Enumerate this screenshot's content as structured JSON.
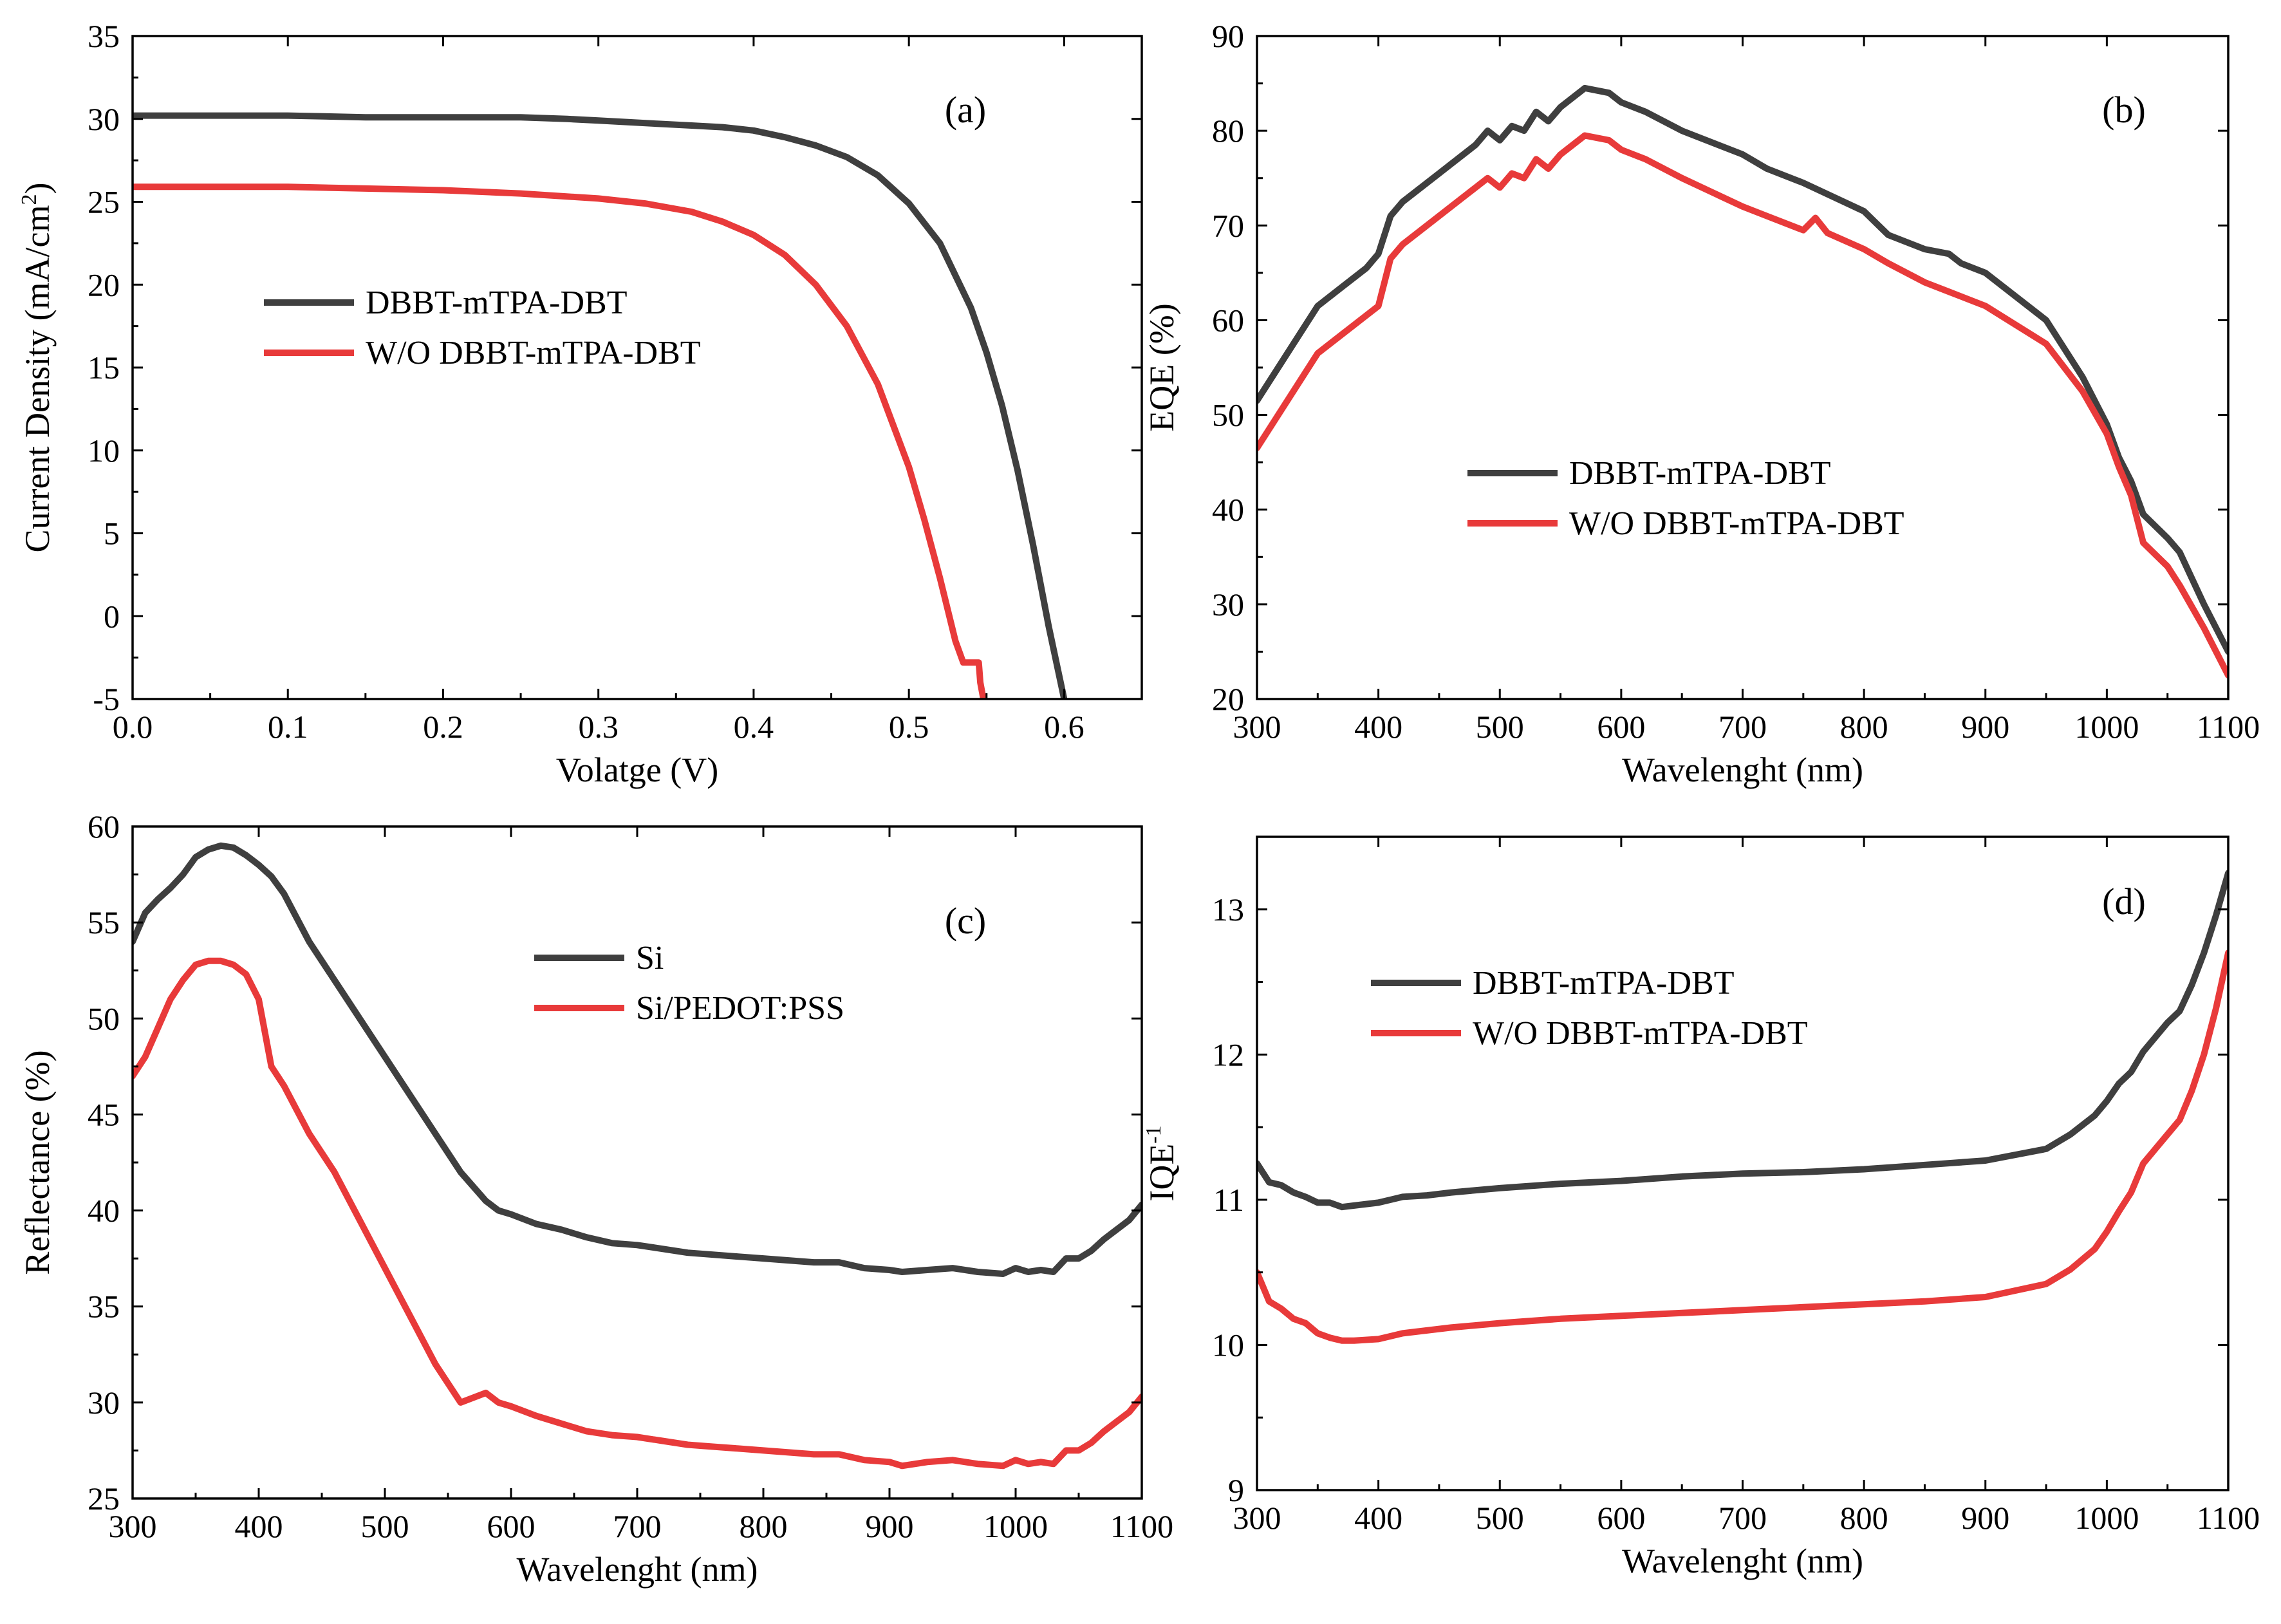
{
  "chart_data": [
    {
      "id": "a",
      "type": "line",
      "panel_label": "(a)",
      "xlabel": "Volatge (V)",
      "ylabel": "Current Density (mA/cm",
      "ylabel_sup": "2",
      "ylabel_after": ")",
      "xlim": [
        0.0,
        0.65
      ],
      "ylim": [
        -5,
        35
      ],
      "xticks": [
        0.0,
        0.1,
        0.2,
        0.3,
        0.4,
        0.5,
        0.6
      ],
      "xtick_labels": [
        "0.0",
        "0.1",
        "0.2",
        "0.3",
        "0.4",
        "0.5",
        "0.6"
      ],
      "yticks": [
        -5,
        0,
        5,
        10,
        15,
        20,
        25,
        30,
        35
      ],
      "ytick_labels": [
        "-5",
        "0",
        "5",
        "10",
        "15",
        "20",
        "25",
        "30",
        "35"
      ],
      "legend_position": "middle-left",
      "series": [
        {
          "name": "DBBT-mTPA-DBT",
          "color": "#3f3f3f",
          "x": [
            0.0,
            0.02,
            0.04,
            0.06,
            0.1,
            0.15,
            0.2,
            0.25,
            0.28,
            0.3,
            0.32,
            0.34,
            0.36,
            0.38,
            0.4,
            0.42,
            0.44,
            0.46,
            0.48,
            0.5,
            0.52,
            0.54,
            0.55,
            0.56,
            0.57,
            0.58,
            0.59,
            0.6
          ],
          "y": [
            30.2,
            30.2,
            30.2,
            30.2,
            30.2,
            30.1,
            30.1,
            30.1,
            30.0,
            29.9,
            29.8,
            29.7,
            29.6,
            29.5,
            29.3,
            28.9,
            28.4,
            27.7,
            26.6,
            24.9,
            22.5,
            18.6,
            15.9,
            12.7,
            8.8,
            4.3,
            -0.6,
            -5.0
          ]
        },
        {
          "name": "W/O DBBT-mTPA-DBT",
          "color": "#e83a3a",
          "x": [
            0.0,
            0.02,
            0.04,
            0.06,
            0.1,
            0.15,
            0.2,
            0.25,
            0.3,
            0.33,
            0.36,
            0.38,
            0.4,
            0.42,
            0.44,
            0.46,
            0.48,
            0.5,
            0.51,
            0.52,
            0.53,
            0.535,
            0.54,
            0.545,
            0.546,
            0.548
          ],
          "y": [
            25.9,
            25.9,
            25.9,
            25.9,
            25.9,
            25.8,
            25.7,
            25.5,
            25.2,
            24.9,
            24.4,
            23.8,
            23.0,
            21.8,
            20.0,
            17.5,
            14.0,
            9.0,
            5.8,
            2.3,
            -1.5,
            -2.8,
            -2.8,
            -2.8,
            -4.0,
            -5.0
          ]
        }
      ]
    },
    {
      "id": "b",
      "type": "line",
      "panel_label": "(b)",
      "xlabel": "Wavelenght (nm)",
      "ylabel": "EQE (%)",
      "xlim": [
        300,
        1100
      ],
      "ylim": [
        20,
        90
      ],
      "xticks": [
        300,
        400,
        500,
        600,
        700,
        800,
        900,
        1000,
        1100
      ],
      "xtick_labels": [
        "300",
        "400",
        "500",
        "600",
        "700",
        "800",
        "900",
        "1000",
        "1100"
      ],
      "yticks": [
        20,
        30,
        40,
        50,
        60,
        70,
        80,
        90
      ],
      "ytick_labels": [
        "20",
        "30",
        "40",
        "50",
        "60",
        "70",
        "80",
        "90"
      ],
      "legend_position": "middle-center",
      "series": [
        {
          "name": "DBBT-mTPA-DBT",
          "color": "#3f3f3f",
          "x": [
            300,
            350,
            370,
            390,
            400,
            410,
            420,
            450,
            480,
            490,
            500,
            510,
            520,
            530,
            540,
            550,
            570,
            590,
            600,
            620,
            650,
            700,
            720,
            750,
            800,
            820,
            850,
            870,
            880,
            900,
            950,
            980,
            1000,
            1010,
            1020,
            1030,
            1050,
            1060,
            1080,
            1100
          ],
          "y": [
            51.5,
            61.5,
            63.5,
            65.5,
            67.0,
            71.0,
            72.5,
            75.5,
            78.5,
            80.0,
            79.0,
            80.5,
            80.0,
            82.0,
            81.0,
            82.5,
            84.5,
            84.0,
            83.0,
            82.0,
            80.0,
            77.5,
            76.0,
            74.5,
            71.5,
            69.0,
            67.5,
            67.0,
            66.0,
            65.0,
            60.0,
            54.0,
            49.0,
            45.5,
            43.0,
            39.5,
            37.0,
            35.5,
            30.0,
            25.0
          ]
        },
        {
          "name": "W/O DBBT-mTPA-DBT",
          "color": "#e83a3a",
          "x": [
            300,
            350,
            370,
            390,
            400,
            410,
            420,
            450,
            480,
            490,
            500,
            510,
            520,
            530,
            540,
            550,
            570,
            590,
            600,
            620,
            650,
            700,
            720,
            750,
            760,
            770,
            800,
            820,
            850,
            870,
            880,
            900,
            950,
            980,
            1000,
            1010,
            1020,
            1030,
            1050,
            1060,
            1080,
            1100
          ],
          "y": [
            46.5,
            56.5,
            58.5,
            60.5,
            61.5,
            66.5,
            68.0,
            71.0,
            74.0,
            75.0,
            74.0,
            75.5,
            75.0,
            77.0,
            76.0,
            77.5,
            79.5,
            79.0,
            78.0,
            77.0,
            75.0,
            72.0,
            71.0,
            69.5,
            70.8,
            69.2,
            67.5,
            66.0,
            64.0,
            63.0,
            62.5,
            61.5,
            57.5,
            52.5,
            48.0,
            44.5,
            41.5,
            36.5,
            34.0,
            32.0,
            27.5,
            22.5
          ]
        }
      ]
    },
    {
      "id": "c",
      "type": "line",
      "panel_label": "(c)",
      "xlabel": "Wavelenght (nm)",
      "ylabel": "Reflectance (%)",
      "xlim": [
        300,
        1100
      ],
      "ylim": [
        25,
        60
      ],
      "xticks": [
        300,
        400,
        500,
        600,
        700,
        800,
        900,
        1000,
        1100
      ],
      "xtick_labels": [
        "300",
        "400",
        "500",
        "600",
        "700",
        "800",
        "900",
        "1000",
        "1100"
      ],
      "yticks": [
        25,
        30,
        35,
        40,
        45,
        50,
        55,
        60
      ],
      "ytick_labels": [
        "25",
        "30",
        "35",
        "40",
        "45",
        "50",
        "55",
        "60"
      ],
      "legend_position": "top-center",
      "series": [
        {
          "name": "Si",
          "color": "#3f3f3f",
          "x": [
            300,
            310,
            320,
            330,
            340,
            350,
            360,
            370,
            380,
            390,
            400,
            410,
            420,
            440,
            460,
            480,
            500,
            520,
            540,
            560,
            580,
            590,
            600,
            620,
            640,
            660,
            680,
            700,
            720,
            740,
            760,
            780,
            800,
            820,
            840,
            860,
            880,
            900,
            910,
            930,
            950,
            970,
            990,
            1000,
            1010,
            1020,
            1030,
            1040,
            1050,
            1060,
            1070,
            1080,
            1090,
            1100
          ],
          "y": [
            54.0,
            55.5,
            56.2,
            56.8,
            57.5,
            58.4,
            58.8,
            59.0,
            58.9,
            58.5,
            58.0,
            57.4,
            56.5,
            54.0,
            52.0,
            50.0,
            48.0,
            46.0,
            44.0,
            42.0,
            40.5,
            40.0,
            39.8,
            39.3,
            39.0,
            38.6,
            38.3,
            38.2,
            38.0,
            37.8,
            37.7,
            37.6,
            37.5,
            37.4,
            37.3,
            37.3,
            37.0,
            36.9,
            36.8,
            36.9,
            37.0,
            36.8,
            36.7,
            37.0,
            36.8,
            36.9,
            36.8,
            37.5,
            37.5,
            37.9,
            38.5,
            39.0,
            39.5,
            40.3
          ]
        },
        {
          "name": "Si/PEDOT:PSS",
          "color": "#e83a3a",
          "x": [
            300,
            310,
            320,
            330,
            340,
            350,
            360,
            370,
            380,
            390,
            400,
            410,
            420,
            440,
            460,
            480,
            500,
            520,
            540,
            560,
            580,
            590,
            600,
            620,
            640,
            660,
            680,
            700,
            720,
            740,
            760,
            780,
            800,
            820,
            840,
            860,
            880,
            900,
            910,
            930,
            950,
            970,
            990,
            1000,
            1010,
            1020,
            1030,
            1040,
            1050,
            1060,
            1070,
            1080,
            1090,
            1100
          ],
          "y": [
            47.0,
            48.0,
            49.5,
            51.0,
            52.0,
            52.8,
            53.0,
            53.0,
            52.8,
            52.3,
            51.0,
            47.5,
            46.5,
            44.0,
            42.0,
            39.5,
            37.0,
            34.5,
            32.0,
            30.0,
            30.5,
            30.0,
            29.8,
            29.3,
            28.9,
            28.5,
            28.3,
            28.2,
            28.0,
            27.8,
            27.7,
            27.6,
            27.5,
            27.4,
            27.3,
            27.3,
            27.0,
            26.9,
            26.7,
            26.9,
            27.0,
            26.8,
            26.7,
            27.0,
            26.8,
            26.9,
            26.8,
            27.5,
            27.5,
            27.9,
            28.5,
            29.0,
            29.5,
            30.3
          ]
        }
      ]
    },
    {
      "id": "d",
      "type": "line",
      "panel_label": "(d)",
      "xlabel": "Wavelenght (nm)",
      "ylabel": "IQE",
      "ylabel_sup": "-1",
      "xlim": [
        300,
        1100
      ],
      "ylim": [
        9,
        13.5
      ],
      "xticks": [
        300,
        400,
        500,
        600,
        700,
        800,
        900,
        1000,
        1100
      ],
      "xtick_labels": [
        "300",
        "400",
        "500",
        "600",
        "700",
        "800",
        "900",
        "1000",
        "1100"
      ],
      "yticks": [
        9,
        10,
        11,
        12,
        13
      ],
      "ytick_labels": [
        "9",
        "10",
        "11",
        "12",
        "13"
      ],
      "legend_position": "top-center",
      "series": [
        {
          "name": "DBBT-mTPA-DBT",
          "color": "#3f3f3f",
          "x": [
            300,
            310,
            320,
            330,
            340,
            350,
            360,
            370,
            380,
            400,
            420,
            440,
            460,
            500,
            550,
            600,
            650,
            700,
            750,
            800,
            850,
            900,
            950,
            970,
            990,
            1000,
            1010,
            1020,
            1030,
            1040,
            1050,
            1060,
            1070,
            1080,
            1090,
            1100
          ],
          "y": [
            11.25,
            11.12,
            11.1,
            11.05,
            11.02,
            10.98,
            10.98,
            10.95,
            10.96,
            10.98,
            11.02,
            11.03,
            11.05,
            11.08,
            11.11,
            11.13,
            11.16,
            11.18,
            11.19,
            11.21,
            11.24,
            11.27,
            11.35,
            11.45,
            11.58,
            11.68,
            11.8,
            11.88,
            12.02,
            12.12,
            12.22,
            12.3,
            12.48,
            12.7,
            12.96,
            13.25
          ]
        },
        {
          "name": "W/O DBBT-mTPA-DBT",
          "color": "#e83a3a",
          "x": [
            300,
            310,
            320,
            330,
            340,
            350,
            360,
            370,
            380,
            400,
            420,
            440,
            460,
            500,
            550,
            600,
            650,
            700,
            750,
            800,
            850,
            900,
            950,
            970,
            990,
            1000,
            1010,
            1020,
            1030,
            1040,
            1050,
            1060,
            1070,
            1080,
            1090,
            1100
          ],
          "y": [
            10.5,
            10.3,
            10.25,
            10.18,
            10.15,
            10.08,
            10.05,
            10.03,
            10.03,
            10.04,
            10.08,
            10.1,
            10.12,
            10.15,
            10.18,
            10.2,
            10.22,
            10.24,
            10.26,
            10.28,
            10.3,
            10.33,
            10.42,
            10.52,
            10.66,
            10.78,
            10.92,
            11.05,
            11.25,
            11.35,
            11.45,
            11.55,
            11.75,
            12.0,
            12.32,
            12.7
          ]
        }
      ]
    }
  ]
}
